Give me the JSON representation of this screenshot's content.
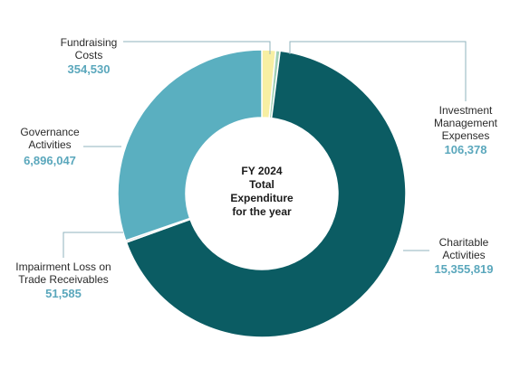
{
  "chart_data": {
    "type": "pie",
    "center_text": [
      "FY 2024",
      "Total",
      "Expenditure",
      "for the year"
    ],
    "value_color": "#5aa7bc",
    "slices": [
      {
        "id": "fundraising",
        "label_lines": [
          "Fundraising",
          "Costs"
        ],
        "value": 354530,
        "value_text": "354,530",
        "color": "#f7efa3"
      },
      {
        "id": "investment",
        "label_lines": [
          "Investment",
          "Management",
          "Expenses"
        ],
        "value": 106378,
        "value_text": "106,378",
        "color": "#9fd0b6"
      },
      {
        "id": "charitable",
        "label_lines": [
          "Charitable",
          "Activities"
        ],
        "value": 15355819,
        "value_text": "15,355,819",
        "color": "#0b5c63"
      },
      {
        "id": "impairment",
        "label_lines": [
          "Impairment Loss on",
          "Trade Receivables"
        ],
        "value": 51585,
        "value_text": "51,585",
        "color": "#d6d6d6"
      },
      {
        "id": "governance",
        "label_lines": [
          "Governance",
          "Activities"
        ],
        "value": 6896047,
        "value_text": "6,896,047",
        "color": "#5aafc0"
      }
    ]
  }
}
